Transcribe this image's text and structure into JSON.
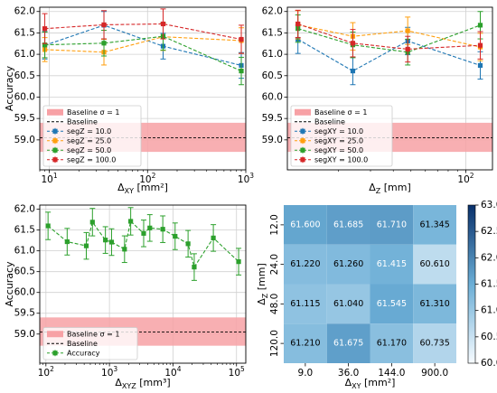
{
  "colors": {
    "blue": "#1f77b4",
    "orange": "#ff9f0e",
    "green": "#2ca02c",
    "red": "#d62728",
    "band": "#f7a1a5",
    "heat_low": "#ffffff",
    "heat_high": "#08306b"
  },
  "chart_data": [
    {
      "id": "top-left",
      "type": "line",
      "x_scale": "log",
      "xlabel_main": "Δ",
      "xlabel_sub": "XY",
      "xlabel_unit": "[mm²]",
      "ylabel": "Accuracy",
      "xlim": [
        8,
        1000
      ],
      "ylim": [
        58.3,
        62.1
      ],
      "x_ticks": [
        {
          "v": 10,
          "base": "10",
          "exp": "1"
        },
        {
          "v": 100,
          "base": "10",
          "exp": "2"
        },
        {
          "v": 1000,
          "base": "10",
          "exp": "3"
        }
      ],
      "y_ticks": [
        "59.0",
        "59.5",
        "60.0",
        "60.5",
        "61.0",
        "61.5",
        "62.0"
      ],
      "y_tick_values": [
        59.0,
        59.5,
        60.0,
        60.5,
        61.0,
        61.5,
        62.0
      ],
      "baseline": 59.05,
      "band": [
        58.72,
        59.4
      ],
      "legend": {
        "position": "lower-left",
        "band_label": "Baseline σ = 1",
        "baseline_label": "Baseline"
      },
      "series": [
        {
          "name": "segZ = 10.0",
          "color_key": "blue",
          "x": [
            9,
            36,
            144,
            900
          ],
          "y": [
            61.21,
            61.68,
            61.19,
            60.74
          ],
          "err": [
            0.32,
            0.32,
            0.3,
            0.3
          ]
        },
        {
          "name": "segZ = 25.0",
          "color_key": "orange",
          "x": [
            9,
            36,
            144,
            900
          ],
          "y": [
            61.11,
            61.05,
            61.41,
            61.32
          ],
          "err": [
            0.28,
            0.3,
            0.32,
            0.3
          ]
        },
        {
          "name": "segZ = 50.0",
          "color_key": "green",
          "x": [
            9,
            36,
            144,
            900
          ],
          "y": [
            61.22,
            61.26,
            61.42,
            60.61
          ],
          "err": [
            0.3,
            0.3,
            0.32,
            0.32
          ]
        },
        {
          "name": "segZ = 100.0",
          "color_key": "red",
          "x": [
            9,
            36,
            144,
            900
          ],
          "y": [
            61.6,
            61.69,
            61.71,
            61.35
          ],
          "err": [
            0.35,
            0.33,
            0.35,
            0.33
          ]
        }
      ]
    },
    {
      "id": "top-right",
      "type": "line",
      "x_scale": "log",
      "xlabel_main": "Δ",
      "xlabel_sub": "Z",
      "xlabel_unit": "[mm]",
      "ylabel": "",
      "xlim": [
        10.5,
        140
      ],
      "ylim": [
        58.3,
        62.1
      ],
      "x_ticks": [
        {
          "v": 100,
          "base": "10",
          "exp": "2"
        }
      ],
      "y_ticks": [
        "59.0",
        "59.5",
        "60.0",
        "60.5",
        "61.0",
        "61.5",
        "62.0"
      ],
      "y_tick_values": [
        59.0,
        59.5,
        60.0,
        60.5,
        61.0,
        61.5,
        62.0
      ],
      "baseline": 59.05,
      "band": [
        58.72,
        59.4
      ],
      "legend": {
        "position": "lower-left",
        "band_label": "Baseline σ = 1",
        "baseline_label": "Baseline"
      },
      "series": [
        {
          "name": "segXY = 10.0",
          "color_key": "blue",
          "x": [
            12,
            24,
            48,
            120
          ],
          "y": [
            61.35,
            60.61,
            61.31,
            60.74
          ],
          "err": [
            0.33,
            0.32,
            0.32,
            0.32
          ]
        },
        {
          "name": "segXY = 25.0",
          "color_key": "orange",
          "x": [
            12,
            24,
            48,
            120
          ],
          "y": [
            61.69,
            61.42,
            61.55,
            61.17
          ],
          "err": [
            0.33,
            0.32,
            0.32,
            0.32
          ]
        },
        {
          "name": "segXY = 50.0",
          "color_key": "green",
          "x": [
            12,
            24,
            48,
            120
          ],
          "y": [
            61.6,
            61.22,
            61.05,
            61.68
          ],
          "err": [
            0.32,
            0.3,
            0.3,
            0.32
          ]
        },
        {
          "name": "segXY = 100.0",
          "color_key": "red",
          "x": [
            12,
            24,
            48,
            120
          ],
          "y": [
            61.71,
            61.26,
            61.12,
            61.21
          ],
          "err": [
            0.32,
            0.32,
            0.3,
            0.32
          ]
        }
      ]
    },
    {
      "id": "bottom-left",
      "type": "line",
      "x_scale": "log",
      "xlabel_main": "Δ",
      "xlabel_sub": "XYZ",
      "xlabel_unit": "[mm³]",
      "ylabel": "Accuracy",
      "xlim": [
        80,
        140000
      ],
      "ylim": [
        58.3,
        62.1
      ],
      "x_ticks": [
        {
          "v": 100,
          "base": "10",
          "exp": "2"
        },
        {
          "v": 1000,
          "base": "10",
          "exp": "3"
        },
        {
          "v": 10000,
          "base": "10",
          "exp": "4"
        },
        {
          "v": 100000,
          "base": "10",
          "exp": "5"
        }
      ],
      "y_ticks": [
        "59.0",
        "59.5",
        "60.0",
        "60.5",
        "61.0",
        "61.5",
        "62.0"
      ],
      "y_tick_values": [
        59.0,
        59.5,
        60.0,
        60.5,
        61.0,
        61.5,
        62.0
      ],
      "baseline": 59.05,
      "band": [
        58.72,
        59.4
      ],
      "legend": {
        "position": "lower-left",
        "band_label": "Baseline σ = 1",
        "baseline_label": "Baseline"
      },
      "series": [
        {
          "name": "Accuracy",
          "color_key": "green",
          "x": [
            108,
            216,
            432,
            540,
            864,
            1080,
            1728,
            2160,
            3456,
            4320,
            6912,
            10800,
            17280,
            21600,
            43200,
            108000
          ],
          "y": [
            61.6,
            61.22,
            61.12,
            61.69,
            61.26,
            61.21,
            61.04,
            61.71,
            61.42,
            61.55,
            61.52,
            61.35,
            61.17,
            60.61,
            61.31,
            60.74
          ],
          "err": [
            0.33,
            0.32,
            0.32,
            0.33,
            0.32,
            0.32,
            0.32,
            0.33,
            0.32,
            0.32,
            0.32,
            0.32,
            0.32,
            0.32,
            0.32,
            0.32
          ]
        }
      ]
    },
    {
      "id": "bottom-right",
      "type": "heatmap",
      "xlabel_main": "Δ",
      "xlabel_sub": "XY",
      "xlabel_unit": "[mm²]",
      "ylabel_main": "Δ",
      "ylabel_sub": "Z",
      "ylabel_unit": "[mm]",
      "x_categories": [
        "9.0",
        "36.0",
        "144.0",
        "900.0"
      ],
      "y_categories": [
        "12.0",
        "24.0",
        "48.0",
        "120.0"
      ],
      "values": [
        [
          61.6,
          61.685,
          61.71,
          61.345
        ],
        [
          61.22,
          61.26,
          61.415,
          60.61
        ],
        [
          61.115,
          61.04,
          61.545,
          61.31
        ],
        [
          61.21,
          61.675,
          61.17,
          60.735
        ]
      ],
      "labels": [
        [
          "61.600",
          "61.685",
          "61.710",
          "61.345"
        ],
        [
          "61.220",
          "61.260",
          "61.415",
          "60.610"
        ],
        [
          "61.115",
          "61.040",
          "61.545",
          "61.310"
        ],
        [
          "61.210",
          "61.675",
          "61.170",
          "60.735"
        ]
      ],
      "vmin": 60.0,
      "vmax": 63.0,
      "colorbar_ticks": [
        "60.0",
        "60.5",
        "61.0",
        "61.5",
        "62.0",
        "62.5",
        "63.0"
      ],
      "colorbar_tick_values": [
        60.0,
        60.5,
        61.0,
        61.5,
        62.0,
        62.5,
        63.0
      ]
    }
  ]
}
